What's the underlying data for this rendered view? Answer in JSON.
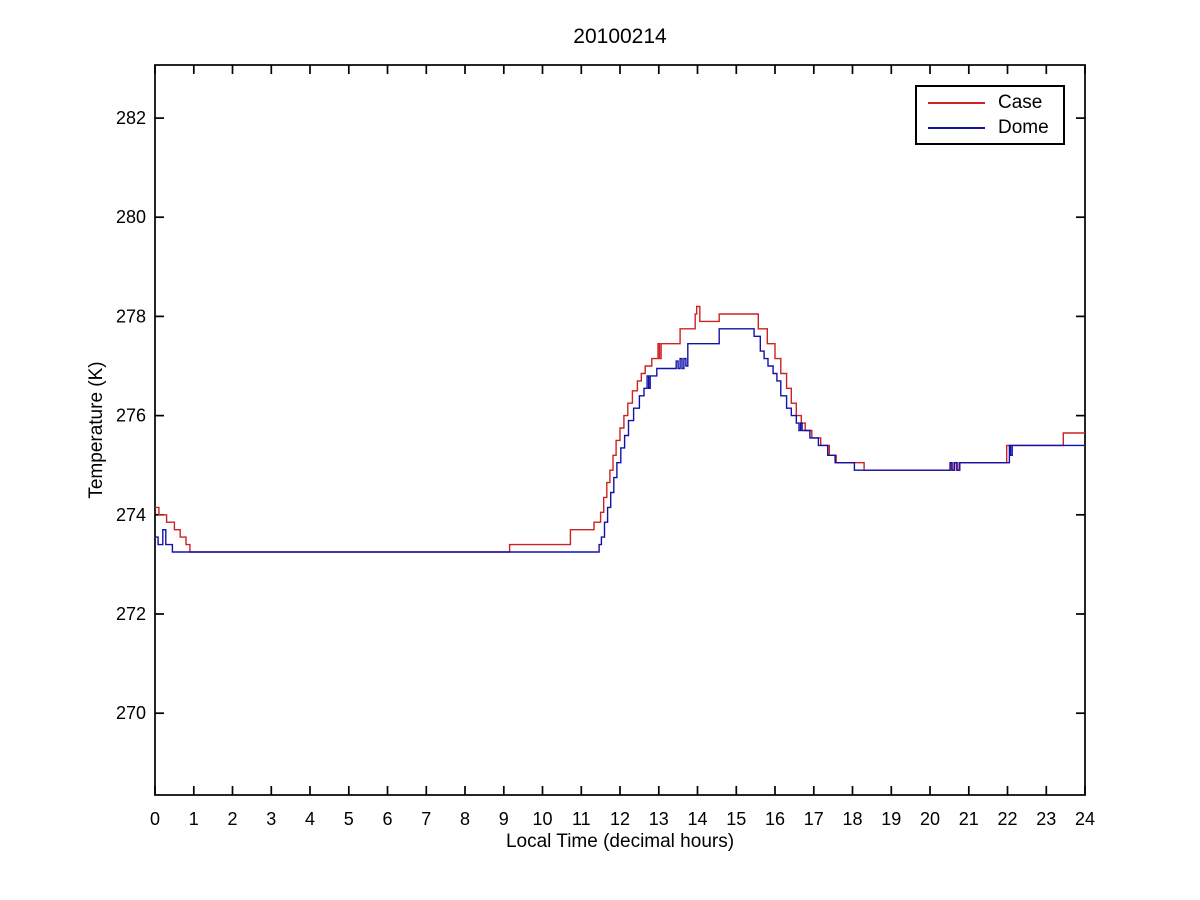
{
  "colors": {
    "background": "#ffffff",
    "axis": "#000000",
    "case_line": "#cc2222",
    "dome_line": "#1212aa"
  },
  "chart_data": {
    "type": "line",
    "step": true,
    "title": "20100214",
    "xlabel": "Local Time (decimal hours)",
    "ylabel": "Temperature (K)",
    "xlim": [
      0,
      24
    ],
    "ylim": [
      268.35,
      283.07
    ],
    "xticks": [
      0,
      1,
      2,
      3,
      4,
      5,
      6,
      7,
      8,
      9,
      10,
      11,
      12,
      13,
      14,
      15,
      16,
      17,
      18,
      19,
      20,
      21,
      22,
      23,
      24
    ],
    "yticks": [
      270,
      272,
      274,
      276,
      278,
      280,
      282
    ],
    "grid": false,
    "legend_position": "top-right",
    "series": [
      {
        "name": "Case",
        "color": "#cc2222",
        "points": [
          [
            0.0,
            274.15
          ],
          [
            0.1,
            274.0
          ],
          [
            0.3,
            273.85
          ],
          [
            0.5,
            273.7
          ],
          [
            0.65,
            273.55
          ],
          [
            0.8,
            273.4
          ],
          [
            0.9,
            273.25
          ],
          [
            9.15,
            273.4
          ],
          [
            10.72,
            273.7
          ],
          [
            11.33,
            273.85
          ],
          [
            11.5,
            274.05
          ],
          [
            11.58,
            274.35
          ],
          [
            11.66,
            274.65
          ],
          [
            11.74,
            274.9
          ],
          [
            11.82,
            275.2
          ],
          [
            11.9,
            275.5
          ],
          [
            12.0,
            275.75
          ],
          [
            12.1,
            276.0
          ],
          [
            12.2,
            276.25
          ],
          [
            12.32,
            276.5
          ],
          [
            12.45,
            276.7
          ],
          [
            12.55,
            276.85
          ],
          [
            12.65,
            277.0
          ],
          [
            12.82,
            277.15
          ],
          [
            12.98,
            277.45
          ],
          [
            13.02,
            277.15
          ],
          [
            13.06,
            277.45
          ],
          [
            13.55,
            277.75
          ],
          [
            13.94,
            278.05
          ],
          [
            13.98,
            278.2
          ],
          [
            14.06,
            277.9
          ],
          [
            14.56,
            278.05
          ],
          [
            15.57,
            277.75
          ],
          [
            15.8,
            277.45
          ],
          [
            16.0,
            277.15
          ],
          [
            16.15,
            276.85
          ],
          [
            16.3,
            276.55
          ],
          [
            16.42,
            276.25
          ],
          [
            16.55,
            276.0
          ],
          [
            16.68,
            275.85
          ],
          [
            16.78,
            275.7
          ],
          [
            16.95,
            275.55
          ],
          [
            17.18,
            275.4
          ],
          [
            17.4,
            275.2
          ],
          [
            17.58,
            275.05
          ],
          [
            18.3,
            274.9
          ],
          [
            20.52,
            275.05
          ],
          [
            20.56,
            274.9
          ],
          [
            20.62,
            275.05
          ],
          [
            20.68,
            274.9
          ],
          [
            20.75,
            275.05
          ],
          [
            21.98,
            275.4
          ],
          [
            23.44,
            275.65
          ]
        ]
      },
      {
        "name": "Dome",
        "color": "#1212aa",
        "points": [
          [
            0.0,
            273.55
          ],
          [
            0.08,
            273.4
          ],
          [
            0.2,
            273.7
          ],
          [
            0.28,
            273.4
          ],
          [
            0.45,
            273.25
          ],
          [
            11.46,
            273.4
          ],
          [
            11.52,
            273.55
          ],
          [
            11.6,
            273.85
          ],
          [
            11.68,
            274.15
          ],
          [
            11.76,
            274.45
          ],
          [
            11.84,
            274.75
          ],
          [
            11.92,
            275.05
          ],
          [
            12.02,
            275.35
          ],
          [
            12.12,
            275.6
          ],
          [
            12.22,
            275.9
          ],
          [
            12.35,
            276.15
          ],
          [
            12.5,
            276.4
          ],
          [
            12.62,
            276.55
          ],
          [
            12.7,
            276.8
          ],
          [
            12.74,
            276.55
          ],
          [
            12.78,
            276.8
          ],
          [
            12.95,
            276.95
          ],
          [
            13.45,
            277.1
          ],
          [
            13.5,
            276.95
          ],
          [
            13.55,
            277.15
          ],
          [
            13.6,
            276.95
          ],
          [
            13.65,
            277.15
          ],
          [
            13.7,
            277.0
          ],
          [
            13.75,
            277.45
          ],
          [
            14.56,
            277.75
          ],
          [
            15.46,
            277.6
          ],
          [
            15.62,
            277.3
          ],
          [
            15.72,
            277.15
          ],
          [
            15.82,
            277.0
          ],
          [
            15.95,
            276.85
          ],
          [
            16.05,
            276.7
          ],
          [
            16.15,
            276.4
          ],
          [
            16.3,
            276.15
          ],
          [
            16.42,
            276.0
          ],
          [
            16.55,
            275.85
          ],
          [
            16.62,
            275.7
          ],
          [
            16.66,
            275.85
          ],
          [
            16.7,
            275.7
          ],
          [
            16.9,
            275.55
          ],
          [
            17.12,
            275.4
          ],
          [
            17.36,
            275.2
          ],
          [
            17.55,
            275.05
          ],
          [
            18.05,
            274.9
          ],
          [
            20.52,
            275.05
          ],
          [
            20.57,
            274.9
          ],
          [
            20.63,
            275.05
          ],
          [
            20.7,
            274.9
          ],
          [
            20.77,
            275.05
          ],
          [
            22.05,
            275.4
          ],
          [
            22.08,
            275.2
          ],
          [
            22.12,
            275.4
          ],
          [
            24.0,
            275.4
          ]
        ]
      }
    ]
  }
}
